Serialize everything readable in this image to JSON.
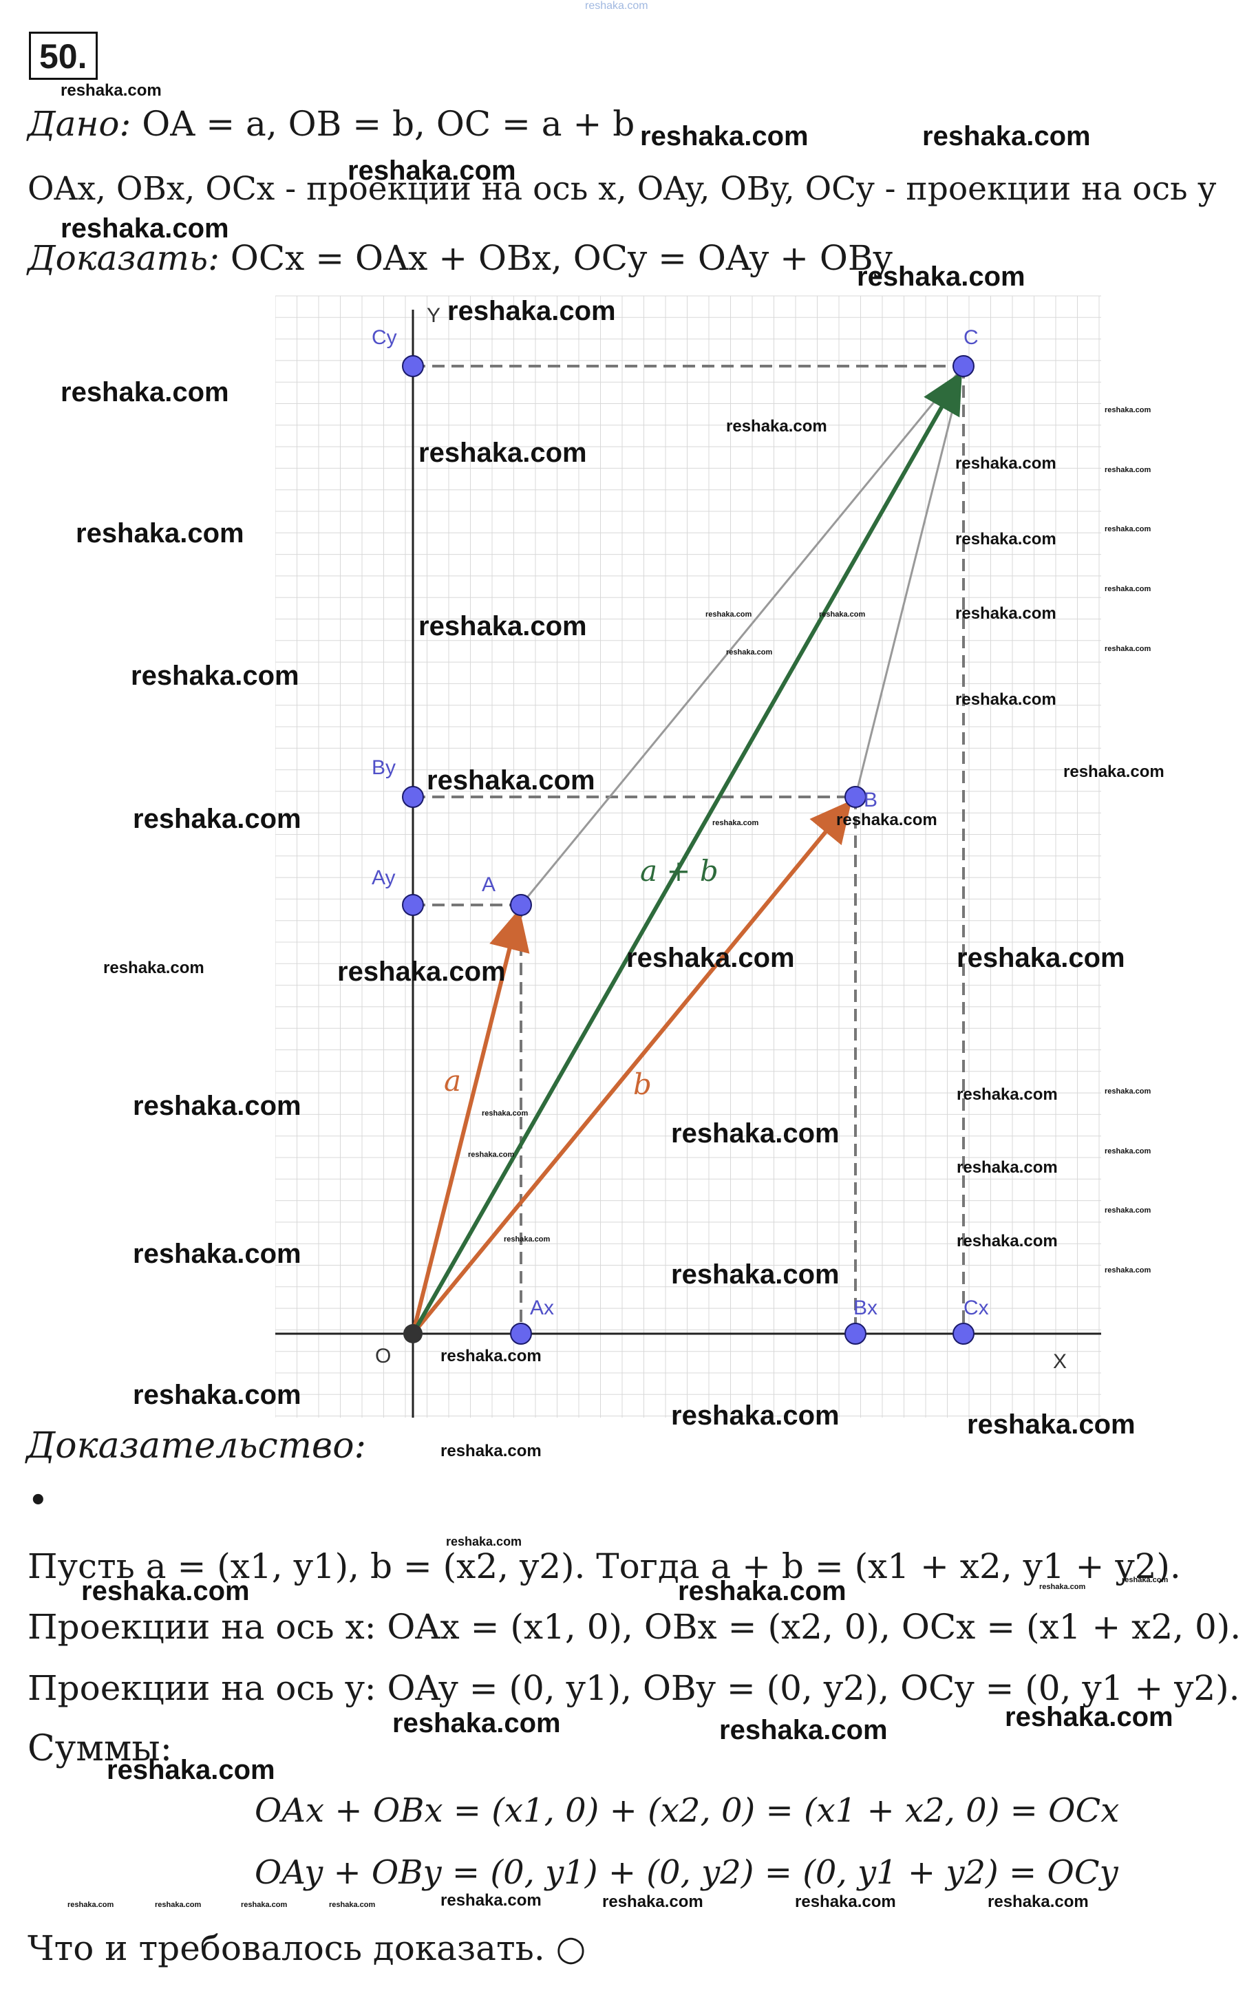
{
  "header": {
    "top_watermark": "reshaka.com",
    "problem_number": "50."
  },
  "given": {
    "label": "Дано:",
    "text": " OA = a, OB = b, OC = a + b"
  },
  "projections_line": "OAx, OBx, OCx - проекции на ось x, OAy, OBy, OCy - проекции на ось y",
  "prove": {
    "label": "Доказать:",
    "text": " OCx = OAx + OBx, OCy = OAy + OBy"
  },
  "figure": {
    "points": {
      "O": "O",
      "A": "A",
      "B": "B",
      "C": "C",
      "Ax": "Ax",
      "Bx": "Bx",
      "Cx": "Cx",
      "Ay": "Ay",
      "By": "By",
      "Cy": "Cy"
    },
    "axis_x": "X",
    "axis_y": "Y",
    "vec_a": "a",
    "vec_b": "b",
    "vec_sum": "a + b",
    "colors": {
      "grid": "#d8d8d8",
      "axis": "#222222",
      "point": "#6666ee",
      "orange": "#cc6633",
      "green": "#2e6b3c",
      "gray": "#999999"
    }
  },
  "proof": {
    "title": "Доказательство:",
    "bullet": "•",
    "line1": "Пусть a = (x1, y1), b = (x2, y2). Тогда a + b = (x1 + x2,  y1 + y2).",
    "line2": "Проекции на ось x: OAx = (x1, 0), OBx = (x2, 0), OCx = (x1 + x2, 0).",
    "line3": "Проекции на ось y: OAy = (0, y1), OBy = (0, y2), OCy = (0, y1 + y2).",
    "sums_label": "Суммы:",
    "formula1": "OAx + OBx = (x1, 0) + (x2, 0) = (x1 + x2, 0) = OCx",
    "formula2": "OAy + OBy = (0, y1) + (0, y2) = (0, y1 + y2) = OCy",
    "conclusion": "Что и требовалось доказать. ○"
  },
  "watermark": "reshaka.com"
}
